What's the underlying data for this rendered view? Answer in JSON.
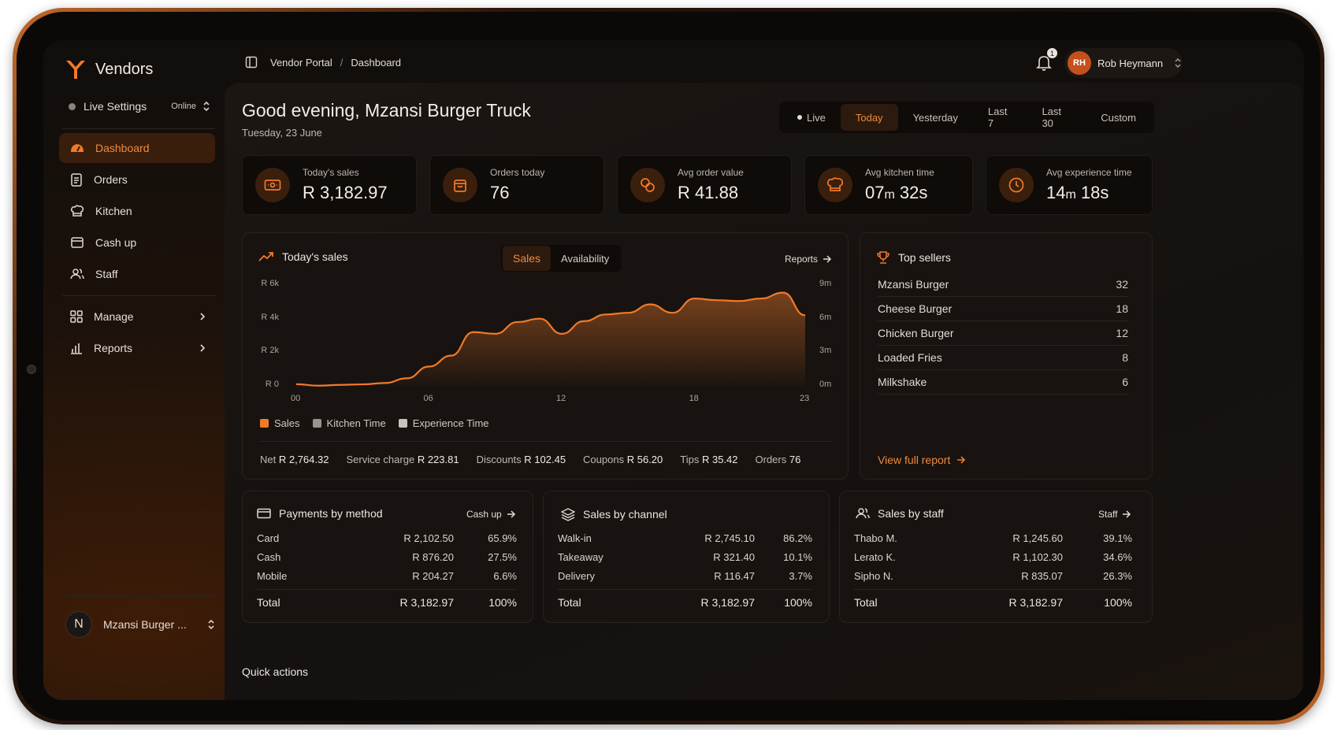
{
  "brand": {
    "name": "Vendors"
  },
  "live_settings": {
    "label": "Live Settings",
    "status": "Online"
  },
  "nav": {
    "dashboard": "Dashboard",
    "orders": "Orders",
    "kitchen": "Kitchen",
    "cash_up": "Cash up",
    "staff": "Staff",
    "manage": "Manage",
    "reports": "Reports"
  },
  "account": {
    "initial": "N",
    "name": "Mzansi Burger ..."
  },
  "breadcrumb": {
    "root": "Vendor Portal",
    "sep": "/",
    "current": "Dashboard"
  },
  "notifications": {
    "count": "1"
  },
  "user": {
    "initials": "RH",
    "name": "Rob Heymann"
  },
  "header": {
    "greeting": "Good evening, Mzansi Burger Truck",
    "date": "Tuesday, 23 June"
  },
  "range": {
    "live": "Live",
    "today": "Today",
    "yesterday": "Yesterday",
    "last7": "Last 7",
    "last30": "Last 30",
    "custom": "Custom"
  },
  "kpis": {
    "sales": {
      "label": "Today's sales",
      "value": "R 3,182.97"
    },
    "orders": {
      "label": "Orders today",
      "value": "76"
    },
    "aov": {
      "label": "Avg order value",
      "value": "R 41.88"
    },
    "kitchen": {
      "label": "Avg kitchen time",
      "v1": "07",
      "u1": "m",
      "v2": " 32s"
    },
    "experience": {
      "label": "Avg experience time",
      "v1": "14",
      "u1": "m",
      "v2": " 18s"
    }
  },
  "sales_card": {
    "title": "Today's sales",
    "toggle_sales": "Sales",
    "toggle_availability": "Availability",
    "reports_link": "Reports",
    "legend": {
      "sales": "Sales",
      "kitchen": "Kitchen Time",
      "experience": "Experience Time"
    },
    "summary": {
      "net_label": "Net",
      "net": "R 2,764.32",
      "service_label": "Service charge",
      "service": "R 223.81",
      "discounts_label": "Discounts",
      "discounts": "R 102.45",
      "coupons_label": "Coupons",
      "coupons": "R 56.20",
      "tips_label": "Tips",
      "tips": "R 35.42",
      "orders_label": "Orders",
      "orders": "76"
    }
  },
  "chart_data": {
    "type": "area",
    "ylabels_left": [
      "R 6k",
      "R 4k",
      "R 2k",
      "R 0"
    ],
    "ylabels_right": [
      "9m",
      "6m",
      "3m",
      "0m"
    ],
    "xlabels": [
      "00",
      "06",
      "12",
      "18",
      "23"
    ],
    "ylim": [
      0,
      6000
    ],
    "x": [
      0,
      1,
      2,
      3,
      4,
      5,
      6,
      7,
      8,
      9,
      10,
      11,
      12,
      13,
      14,
      15,
      16,
      17,
      18,
      19,
      20,
      21,
      22,
      23
    ],
    "series": [
      {
        "name": "Sales",
        "values": [
          100,
          10,
          60,
          90,
          170,
          450,
          1150,
          1800,
          3200,
          3100,
          3800,
          4000,
          3100,
          3850,
          4250,
          4350,
          4850,
          4350,
          5200,
          5100,
          5050,
          5200,
          5550,
          4200
        ]
      }
    ],
    "color": "#f07a2a"
  },
  "top_sellers": {
    "title": "Top sellers",
    "items": [
      {
        "name": "Mzansi Burger",
        "count": "32"
      },
      {
        "name": "Cheese Burger",
        "count": "18"
      },
      {
        "name": "Chicken Burger",
        "count": "12"
      },
      {
        "name": "Loaded Fries",
        "count": "8"
      },
      {
        "name": "Milkshake",
        "count": "6"
      }
    ],
    "link": "View full report"
  },
  "payments": {
    "title": "Payments by method",
    "link": "Cash up",
    "rows": [
      {
        "name": "Card",
        "amount": "R 2,102.50",
        "pct": "65.9%"
      },
      {
        "name": "Cash",
        "amount": "R 876.20",
        "pct": "27.5%"
      },
      {
        "name": "Mobile",
        "amount": "R 204.27",
        "pct": "6.6%"
      }
    ],
    "total": {
      "name": "Total",
      "amount": "R 3,182.97",
      "pct": "100%"
    }
  },
  "channels": {
    "title": "Sales by channel",
    "rows": [
      {
        "name": "Walk-in",
        "amount": "R 2,745.10",
        "pct": "86.2%"
      },
      {
        "name": "Takeaway",
        "amount": "R 321.40",
        "pct": "10.1%"
      },
      {
        "name": "Delivery",
        "amount": "R 116.47",
        "pct": "3.7%"
      }
    ],
    "total": {
      "name": "Total",
      "amount": "R 3,182.97",
      "pct": "100%"
    }
  },
  "staff_sales": {
    "title": "Sales by staff",
    "link": "Staff",
    "rows": [
      {
        "name": "Thabo M.",
        "amount": "R 1,245.60",
        "pct": "39.1%"
      },
      {
        "name": "Lerato K.",
        "amount": "R 1,102.30",
        "pct": "34.6%"
      },
      {
        "name": "Sipho N.",
        "amount": "R 835.07",
        "pct": "26.3%"
      }
    ],
    "total": {
      "name": "Total",
      "amount": "R 3,182.97",
      "pct": "100%"
    }
  },
  "quick_actions": {
    "title": "Quick actions"
  }
}
